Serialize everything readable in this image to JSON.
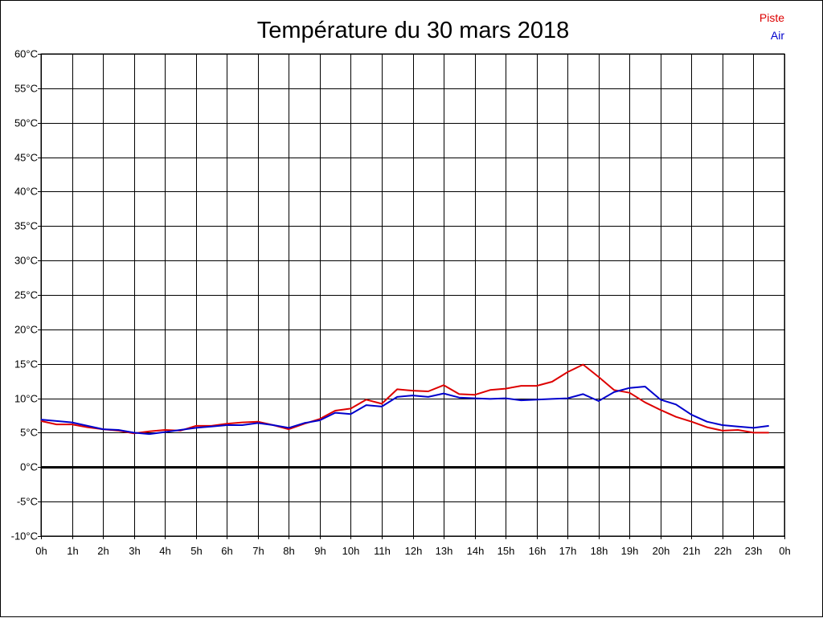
{
  "chart_data": {
    "type": "line",
    "title": "Température du 30 mars 2018",
    "ylim": [
      -10,
      60
    ],
    "xlim": [
      0,
      24
    ],
    "grid": true,
    "legend_position": "top-right",
    "y_ticks": [
      {
        "value": 60,
        "label": "60°C"
      },
      {
        "value": 55,
        "label": "55°C"
      },
      {
        "value": 50,
        "label": "50°C"
      },
      {
        "value": 45,
        "label": "45°C"
      },
      {
        "value": 40,
        "label": "40°C"
      },
      {
        "value": 35,
        "label": "35°C"
      },
      {
        "value": 30,
        "label": "30°C"
      },
      {
        "value": 25,
        "label": "25°C"
      },
      {
        "value": 20,
        "label": "20°C"
      },
      {
        "value": 15,
        "label": "15°C"
      },
      {
        "value": 10,
        "label": "10°C"
      },
      {
        "value": 5,
        "label": "5°C"
      },
      {
        "value": 0,
        "label": "0°C"
      },
      {
        "value": -5,
        "label": "-5°C"
      },
      {
        "value": -10,
        "label": "-10°C"
      }
    ],
    "x_ticks": [
      {
        "value": 0,
        "label": "0h"
      },
      {
        "value": 1,
        "label": "1h"
      },
      {
        "value": 2,
        "label": "2h"
      },
      {
        "value": 3,
        "label": "3h"
      },
      {
        "value": 4,
        "label": "4h"
      },
      {
        "value": 5,
        "label": "5h"
      },
      {
        "value": 6,
        "label": "6h"
      },
      {
        "value": 7,
        "label": "7h"
      },
      {
        "value": 8,
        "label": "8h"
      },
      {
        "value": 9,
        "label": "9h"
      },
      {
        "value": 10,
        "label": "10h"
      },
      {
        "value": 11,
        "label": "11h"
      },
      {
        "value": 12,
        "label": "12h"
      },
      {
        "value": 13,
        "label": "13h"
      },
      {
        "value": 14,
        "label": "14h"
      },
      {
        "value": 15,
        "label": "15h"
      },
      {
        "value": 16,
        "label": "16h"
      },
      {
        "value": 17,
        "label": "17h"
      },
      {
        "value": 18,
        "label": "18h"
      },
      {
        "value": 19,
        "label": "19h"
      },
      {
        "value": 20,
        "label": "20h"
      },
      {
        "value": 21,
        "label": "21h"
      },
      {
        "value": 22,
        "label": "22h"
      },
      {
        "value": 23,
        "label": "23h"
      },
      {
        "value": 24,
        "label": "0h"
      }
    ],
    "series": [
      {
        "name": "Piste",
        "color": "#dd0000",
        "x": [
          0,
          0.5,
          1,
          1.5,
          2,
          2.5,
          3,
          3.5,
          4,
          4.5,
          5,
          5.5,
          6,
          6.5,
          7,
          7.5,
          8,
          8.5,
          9,
          9.5,
          10,
          10.5,
          11,
          11.5,
          12,
          12.5,
          13,
          13.5,
          14,
          14.5,
          15,
          15.5,
          16,
          16.5,
          17,
          17.5,
          18,
          18.5,
          19,
          19.5,
          20,
          20.5,
          21,
          21.5,
          22,
          22.5,
          23,
          23.5
        ],
        "y": [
          6.7,
          6.2,
          6.2,
          5.8,
          5.5,
          5.3,
          4.9,
          5.2,
          5.4,
          5.3,
          6.0,
          6.0,
          6.3,
          6.5,
          6.6,
          6.1,
          5.5,
          6.3,
          7.0,
          8.2,
          8.5,
          9.8,
          9.2,
          11.3,
          11.1,
          11.0,
          11.9,
          10.6,
          10.5,
          11.2,
          11.4,
          11.8,
          11.8,
          12.4,
          13.8,
          14.9,
          13.1,
          11.2,
          10.8,
          9.4,
          8.3,
          7.3,
          6.6,
          5.8,
          5.3,
          5.4,
          5.0,
          5.0
        ]
      },
      {
        "name": "Air",
        "color": "#0000cc",
        "x": [
          0,
          0.5,
          1,
          1.5,
          2,
          2.5,
          3,
          3.5,
          4,
          4.5,
          5,
          5.5,
          6,
          6.5,
          7,
          7.5,
          8,
          8.5,
          9,
          9.5,
          10,
          10.5,
          11,
          11.5,
          12,
          12.5,
          13,
          13.5,
          14,
          14.5,
          15,
          15.5,
          16,
          16.5,
          17,
          17.5,
          18,
          18.5,
          19,
          19.5,
          20,
          20.5,
          21,
          21.5,
          22,
          22.5,
          23,
          23.5
        ],
        "y": [
          6.9,
          6.7,
          6.5,
          6.0,
          5.5,
          5.4,
          5.0,
          4.8,
          5.1,
          5.4,
          5.7,
          5.9,
          6.1,
          6.1,
          6.4,
          6.1,
          5.7,
          6.4,
          6.8,
          7.9,
          7.7,
          9.0,
          8.8,
          10.2,
          10.4,
          10.2,
          10.7,
          10.1,
          10.0,
          9.9,
          10.0,
          9.7,
          9.8,
          9.9,
          10.0,
          10.6,
          9.6,
          10.9,
          11.5,
          11.7,
          9.8,
          9.1,
          7.6,
          6.6,
          6.1,
          5.9,
          5.7,
          6.0
        ]
      }
    ]
  }
}
